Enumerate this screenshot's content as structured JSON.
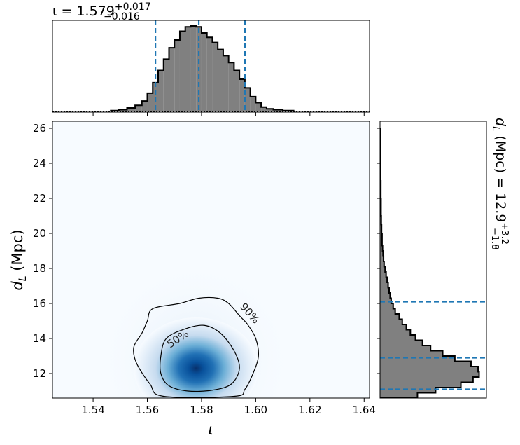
{
  "chart_data": {
    "type": "corner",
    "panels": {
      "iota_marginal": {
        "type": "histogram",
        "parameter": "ι",
        "title": {
          "symbol": "ι",
          "median": "1.579",
          "upper": "+0.017",
          "lower": "−0.016"
        },
        "xlim": [
          1.525,
          1.642
        ],
        "bins_x": [
          1.548,
          1.551,
          1.554,
          1.557,
          1.559,
          1.561,
          1.563,
          1.565,
          1.567,
          1.569,
          1.571,
          1.573,
          1.575,
          1.577,
          1.579,
          1.581,
          1.583,
          1.585,
          1.587,
          1.589,
          1.591,
          1.593,
          1.595,
          1.597,
          1.599,
          1.601,
          1.603,
          1.605,
          1.608,
          1.612
        ],
        "density": [
          0.01,
          0.02,
          0.04,
          0.07,
          0.12,
          0.21,
          0.33,
          0.47,
          0.6,
          0.73,
          0.82,
          0.92,
          0.97,
          0.98,
          0.97,
          0.9,
          0.85,
          0.79,
          0.71,
          0.64,
          0.56,
          0.47,
          0.37,
          0.27,
          0.17,
          0.1,
          0.05,
          0.03,
          0.02,
          0.01
        ],
        "quantile_lines": [
          1.563,
          1.579,
          1.596
        ],
        "hist_color": "#808080",
        "line_color": "#1f77b4"
      },
      "joint": {
        "type": "heatmap",
        "xlabel": "ι",
        "ylabel": "d_L (Mpc)",
        "xlim": [
          1.525,
          1.642
        ],
        "ylim": [
          10.6,
          26.4
        ],
        "x_ticks": [
          "1.54",
          "1.56",
          "1.58",
          "1.60",
          "1.62",
          "1.64"
        ],
        "y_ticks": [
          "12",
          "14",
          "16",
          "18",
          "20",
          "22",
          "24",
          "26"
        ],
        "peak": {
          "x": 1.578,
          "y": 12.3
        },
        "colormap": "Blues",
        "contour_labels": [
          "50%",
          "90%"
        ],
        "contour_50": [
          [
            1.567,
            14.0
          ],
          [
            1.574,
            14.55
          ],
          [
            1.581,
            14.75
          ],
          [
            1.587,
            14.3
          ],
          [
            1.592,
            13.3
          ],
          [
            1.594,
            12.3
          ],
          [
            1.591,
            11.4
          ],
          [
            1.584,
            11.05
          ],
          [
            1.575,
            11.0
          ],
          [
            1.568,
            11.3
          ],
          [
            1.565,
            12.0
          ],
          [
            1.565,
            13.0
          ]
        ],
        "contour_90": [
          [
            1.562,
            15.7
          ],
          [
            1.572,
            16.0
          ],
          [
            1.579,
            16.3
          ],
          [
            1.586,
            16.3
          ],
          [
            1.59,
            16.0
          ],
          [
            1.594,
            15.3
          ],
          [
            1.597,
            14.8
          ],
          [
            1.6,
            14.0
          ],
          [
            1.601,
            13.0
          ],
          [
            1.599,
            12.0
          ],
          [
            1.596,
            11.1
          ],
          [
            1.592,
            10.7
          ],
          [
            1.566,
            10.7
          ],
          [
            1.561,
            11.4
          ],
          [
            1.556,
            12.6
          ],
          [
            1.555,
            13.5
          ],
          [
            1.558,
            14.3
          ],
          [
            1.56,
            15.0
          ]
        ]
      },
      "dl_marginal": {
        "type": "histogram",
        "orientation": "horizontal",
        "parameter": "d_L",
        "title": {
          "symbol": "d_L",
          "unit": "(Mpc)",
          "median": "12.9",
          "upper": "+3.2",
          "lower": "−1.8"
        },
        "ylim": [
          10.6,
          26.4
        ],
        "bins_y": [
          10.6,
          10.9,
          11.2,
          11.5,
          11.8,
          12.1,
          12.4,
          12.7,
          13.0,
          13.3,
          13.6,
          13.9,
          14.2,
          14.5,
          14.8,
          15.1,
          15.4,
          15.7,
          16.0,
          16.3,
          16.6,
          16.9,
          17.2,
          17.5,
          17.8,
          18.1,
          18.4,
          18.7,
          19.0,
          19.3,
          19.6,
          20.0,
          20.5,
          21.0,
          22.0,
          23.0,
          24.0,
          25.0
        ],
        "density": [
          0.37,
          0.55,
          0.8,
          0.92,
          0.98,
          0.97,
          0.9,
          0.74,
          0.62,
          0.5,
          0.42,
          0.35,
          0.3,
          0.26,
          0.22,
          0.19,
          0.15,
          0.13,
          0.11,
          0.1,
          0.09,
          0.08,
          0.07,
          0.06,
          0.05,
          0.04,
          0.035,
          0.03,
          0.025,
          0.02,
          0.02,
          0.015,
          0.012,
          0.01,
          0.008,
          0.005,
          0.004,
          0.002
        ],
        "quantile_lines": [
          11.1,
          12.9,
          16.1
        ],
        "hist_color": "#808080",
        "line_color": "#1f77b4"
      }
    }
  }
}
